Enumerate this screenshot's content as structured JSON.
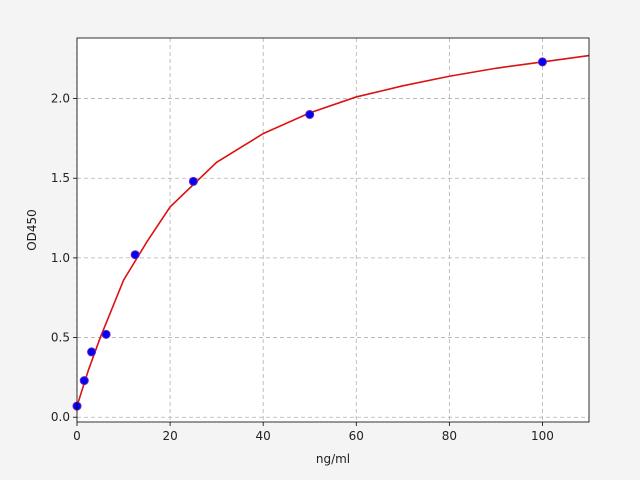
{
  "chart_data": {
    "type": "scatter",
    "xlabel": "ng/ml",
    "ylabel": "OD450",
    "xlim": [
      0,
      110
    ],
    "ylim": [
      -0.03,
      2.38
    ],
    "xticks": [
      0,
      20,
      40,
      60,
      80,
      100
    ],
    "yticks": [
      {
        "value": 0,
        "label": "0.0"
      },
      {
        "value": 0.5,
        "label": "0.5"
      },
      {
        "value": 1,
        "label": "1.0"
      },
      {
        "value": 1.5,
        "label": "1.5"
      },
      {
        "value": 2,
        "label": "2.0"
      }
    ],
    "grid": true,
    "series": [
      {
        "type": "scatter",
        "color": "#0000ff",
        "x": [
          0,
          1.56,
          3.125,
          6.25,
          12.5,
          25,
          50,
          100
        ],
        "values": [
          0.07,
          0.23,
          0.41,
          0.52,
          1.02,
          1.48,
          1.9,
          2.23
        ]
      },
      {
        "type": "line",
        "color": "#dd1111",
        "x": [
          0,
          2.5,
          5,
          10,
          15,
          20,
          30,
          40,
          50,
          60,
          70,
          80,
          90,
          100,
          110
        ],
        "values": [
          0.07,
          0.3,
          0.5,
          0.86,
          1.1,
          1.32,
          1.6,
          1.78,
          1.91,
          2.01,
          2.08,
          2.14,
          2.19,
          2.23,
          2.27
        ]
      }
    ]
  }
}
